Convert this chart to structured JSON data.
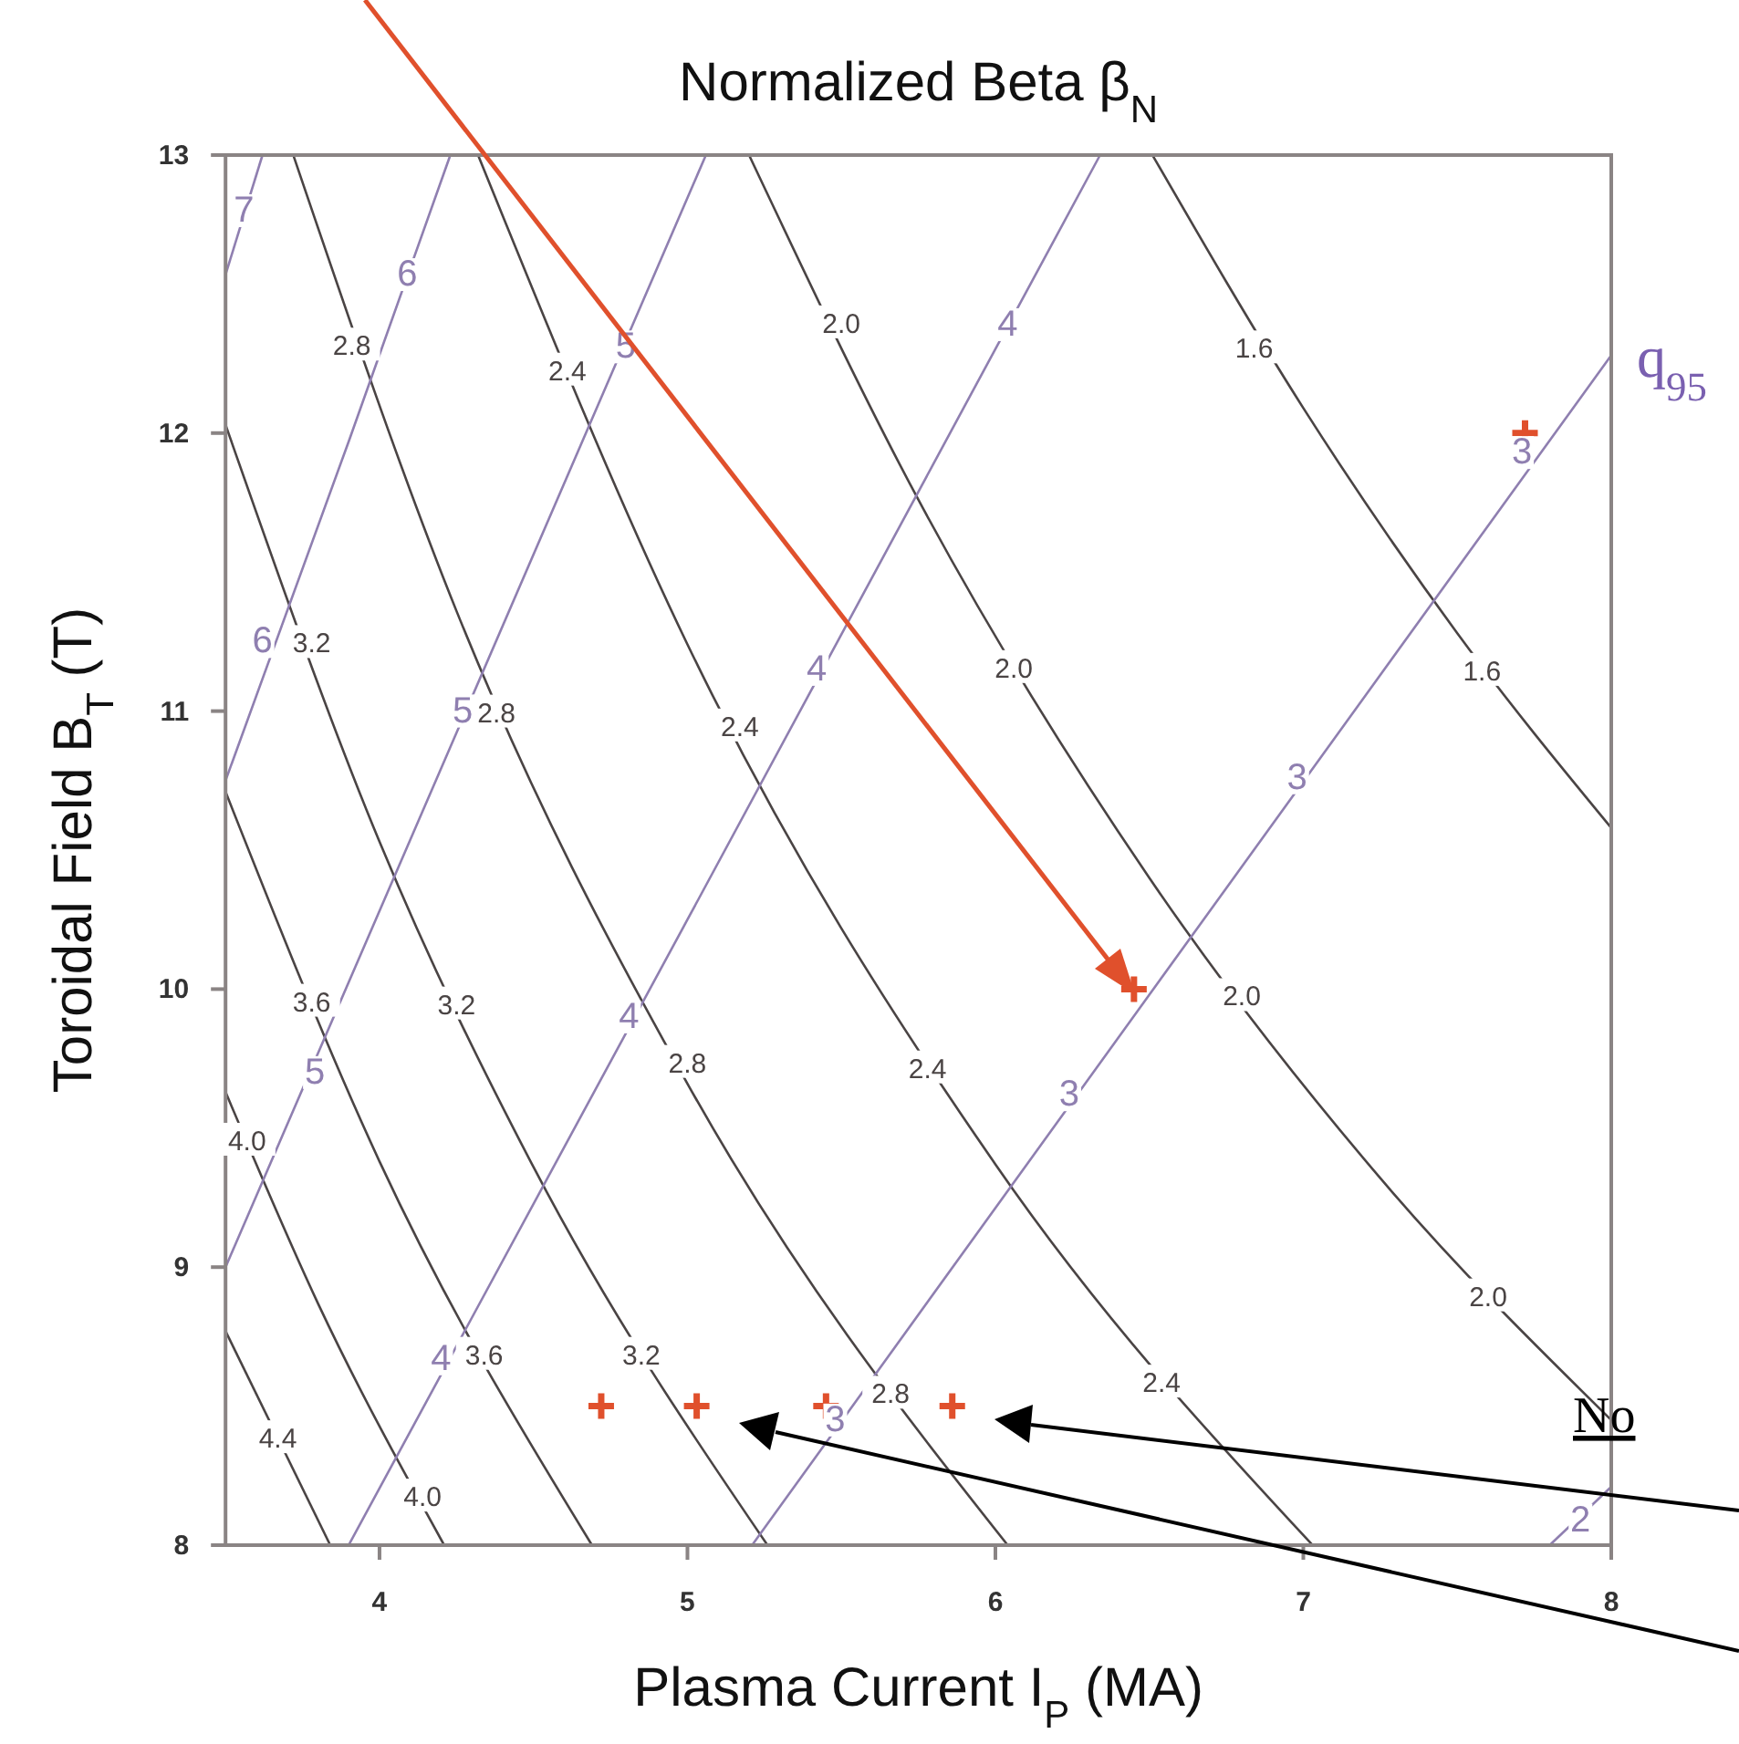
{
  "chart_data": {
    "type": "line",
    "title": "Normalized Beta β$_{N}$",
    "xlabel": "Plasma Current I$_{P}$ (MA)",
    "ylabel": "Toroidal Field B$_{T}$ (T)",
    "xlim": [
      3.5,
      8
    ],
    "ylim": [
      8,
      13
    ],
    "xticks": [
      4,
      5,
      6,
      7,
      8
    ],
    "yticks": [
      8,
      9,
      10,
      11,
      12,
      13
    ],
    "grid": false,
    "marker": "none",
    "line_style": "solid",
    "series": [
      {
        "color": "#4a4444",
        "x": [
          6.51,
          7,
          7.5,
          8
        ],
        "values": [
          13,
          12.09,
          11.28,
          10.58
        ]
      },
      {
        "color": "#4a4444",
        "x": [
          5.2,
          5.75,
          6.5,
          7.25,
          8
        ],
        "values": [
          13,
          11.76,
          10.4,
          9.32,
          8.45
        ]
      },
      {
        "color": "#4a4444",
        "x": [
          4.32,
          5,
          6,
          7.03
        ],
        "values": [
          13,
          11.24,
          9.37,
          8
        ]
      },
      {
        "color": "#4a4444",
        "x": [
          3.72,
          4.25,
          5,
          6.04
        ],
        "values": [
          13,
          11.36,
          9.66,
          8
        ]
      },
      {
        "color": "#4a4444",
        "x": [
          3.5,
          4,
          4.5,
          5.26
        ],
        "values": [
          12.03,
          10.53,
          9.36,
          8
        ]
      },
      {
        "color": "#4a4444",
        "x": [
          3.5,
          4,
          4.69
        ],
        "values": [
          10.71,
          9.38,
          8
        ]
      },
      {
        "color": "#4a4444",
        "x": [
          3.5,
          3.8,
          4.21
        ],
        "values": [
          9.63,
          8.87,
          8
        ]
      },
      {
        "color": "#4a4444",
        "x": [
          3.5,
          3.84
        ],
        "values": [
          8.77,
          8
        ]
      },
      {
        "color": "#8f7fb0",
        "x": [
          3.5,
          3.62
        ],
        "values": [
          12.57,
          13
        ]
      },
      {
        "color": "#8f7fb0",
        "x": [
          3.5,
          3.9,
          4.23
        ],
        "values": [
          10.75,
          11.97,
          13
        ]
      },
      {
        "color": "#8f7fb0",
        "x": [
          3.5,
          4.3,
          5.06
        ],
        "values": [
          9,
          11.05,
          13
        ]
      },
      {
        "color": "#8f7fb0",
        "x": [
          3.9,
          5,
          6.34
        ],
        "values": [
          8,
          10.25,
          13
        ]
      },
      {
        "color": "#8f7fb0",
        "x": [
          5.21,
          6.5,
          8
        ],
        "values": [
          8,
          9.98,
          12.28
        ]
      },
      {
        "color": "#8f7fb0",
        "x": [
          7.8,
          8
        ],
        "values": [
          8,
          8.21
        ]
      },
      {
        "type": "scatter",
        "marker": "cross",
        "color": "#e0502c",
        "x": [
          4.72,
          5.03,
          5.45,
          5.86,
          6.45,
          7.72
        ],
        "values": [
          8.5,
          8.5,
          8.5,
          8.5,
          10,
          12
        ]
      }
    ],
    "annotations": [
      {
        "text": "2.8",
        "x": 3.91,
        "y": 12.32
      },
      {
        "text": "2.4",
        "x": 4.61,
        "y": 12.23
      },
      {
        "text": "2.0",
        "x": 5.5,
        "y": 12.4
      },
      {
        "text": "1.6",
        "x": 6.84,
        "y": 12.31
      },
      {
        "text": "3.2",
        "x": 3.78,
        "y": 11.25
      },
      {
        "text": "2.8",
        "x": 4.38,
        "y": 11.0
      },
      {
        "text": "2.4",
        "x": 5.17,
        "y": 10.95
      },
      {
        "text": "2.0",
        "x": 6.06,
        "y": 11.16
      },
      {
        "text": "1.6",
        "x": 7.58,
        "y": 11.15
      },
      {
        "text": "3.6",
        "x": 3.78,
        "y": 9.96
      },
      {
        "text": "3.2",
        "x": 4.25,
        "y": 9.95
      },
      {
        "text": "2.8",
        "x": 5.0,
        "y": 9.74
      },
      {
        "text": "2.4",
        "x": 5.78,
        "y": 9.72
      },
      {
        "text": "2.0",
        "x": 6.8,
        "y": 9.98
      },
      {
        "text": "4.0",
        "x": 3.57,
        "y": 9.46
      },
      {
        "text": "2.0",
        "x": 7.6,
        "y": 8.9
      },
      {
        "text": "3.6",
        "x": 4.34,
        "y": 8.69
      },
      {
        "text": "3.2",
        "x": 4.85,
        "y": 8.69
      },
      {
        "text": "2.8",
        "x": 5.66,
        "y": 8.55
      },
      {
        "text": "2.4",
        "x": 6.54,
        "y": 8.59
      },
      {
        "text": "4.4",
        "x": 3.67,
        "y": 8.39
      },
      {
        "text": "4.0",
        "x": 4.14,
        "y": 8.18
      },
      {
        "text": "7",
        "x": 3.56,
        "y": 12.8
      },
      {
        "text": "6",
        "x": 4.09,
        "y": 12.57
      },
      {
        "text": "6",
        "x": 3.62,
        "y": 11.25
      },
      {
        "text": "5",
        "x": 4.8,
        "y": 12.31
      },
      {
        "text": "5",
        "x": 4.27,
        "y": 11.0
      },
      {
        "text": "5",
        "x": 3.79,
        "y": 9.7
      },
      {
        "text": "4",
        "x": 6.04,
        "y": 12.39
      },
      {
        "text": "4",
        "x": 5.42,
        "y": 11.15
      },
      {
        "text": "4",
        "x": 4.81,
        "y": 9.9
      },
      {
        "text": "4",
        "x": 4.2,
        "y": 8.67
      },
      {
        "text": "3",
        "x": 7.71,
        "y": 11.93
      },
      {
        "text": "3",
        "x": 6.98,
        "y": 10.76
      },
      {
        "text": "3",
        "x": 6.24,
        "y": 9.62
      },
      {
        "text": "3",
        "x": 5.48,
        "y": 8.45
      },
      {
        "text": "2",
        "x": 7.9,
        "y": 8.09
      },
      {
        "text": "q$_{95}$",
        "x": 8,
        "y": 12.28
      },
      "No"
    ]
  }
}
